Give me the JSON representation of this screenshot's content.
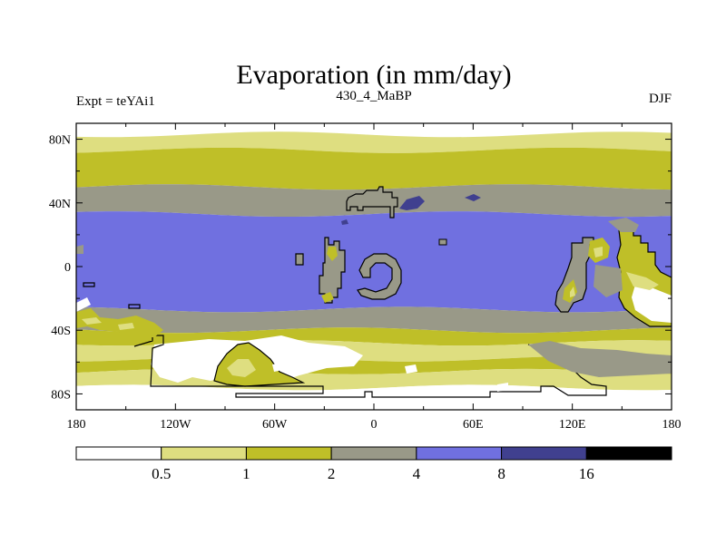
{
  "chart_data": {
    "type": "heatmap",
    "title": "Evaporation (in mm/day)",
    "left_string": "Expt = teYAi1",
    "center_string": "430_4_MaBP",
    "right_string": "DJF",
    "x_ticks": [
      "180",
      "120W",
      "60W",
      "0",
      "60E",
      "120E",
      "180"
    ],
    "x_tick_values": [
      -180,
      -120,
      -60,
      0,
      60,
      120,
      180
    ],
    "y_ticks": [
      "80N",
      "40N",
      "0",
      "40S",
      "80S"
    ],
    "y_tick_values": [
      80,
      40,
      0,
      -40,
      -80
    ],
    "xlim": [
      -180,
      180
    ],
    "ylim": [
      -90,
      90
    ],
    "colorbar": {
      "levels": [
        "0.5",
        "1",
        "2",
        "4",
        "8",
        "16"
      ],
      "level_values": [
        0.5,
        1,
        2,
        4,
        8,
        16
      ],
      "colors": [
        "#ffffff",
        "#dede80",
        "#bfbf28",
        "#999988",
        "#7070e0",
        "#40408f",
        "#000000"
      ]
    },
    "zonal_bands": [
      {
        "lat_from": 90,
        "lat_to": 83,
        "value": 0.3
      },
      {
        "lat_from": 83,
        "lat_to": 73,
        "value": 0.7
      },
      {
        "lat_from": 73,
        "lat_to": 50,
        "value": 1.5
      },
      {
        "lat_from": 50,
        "lat_to": 33,
        "value": 3
      },
      {
        "lat_from": 33,
        "lat_to": -27,
        "value": 6
      },
      {
        "lat_from": -27,
        "lat_to": -40,
        "value": 3
      },
      {
        "lat_from": -40,
        "lat_to": -48,
        "value": 1.5
      },
      {
        "lat_from": -48,
        "lat_to": -58,
        "value": 0.7
      },
      {
        "lat_from": -58,
        "lat_to": -66,
        "value": 1.5
      },
      {
        "lat_from": -66,
        "lat_to": -76,
        "value": 0.7
      },
      {
        "lat_from": -76,
        "lat_to": -90,
        "value": 0.3
      }
    ]
  }
}
